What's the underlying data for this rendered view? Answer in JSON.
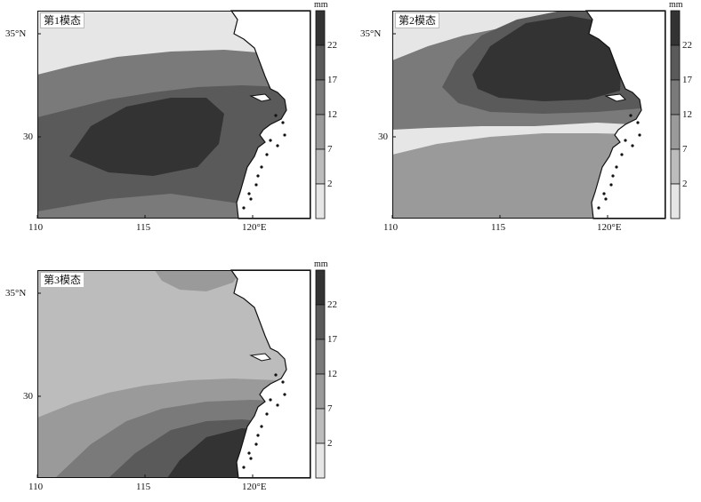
{
  "panels": [
    {
      "id": "p1",
      "title": "第1模态",
      "levels": [
        0,
        3,
        4,
        5
      ]
    },
    {
      "id": "p2",
      "title": "第2模态",
      "levels": [
        0,
        1,
        2,
        3,
        4,
        5
      ]
    },
    {
      "id": "p3",
      "title": "第3模态",
      "levels": [
        1,
        2,
        3,
        4,
        5
      ]
    }
  ],
  "axes": {
    "x_ticks": [
      "110",
      "115",
      "120°E"
    ],
    "y_ticks": [
      "35°N",
      "30"
    ]
  },
  "colorbar": {
    "unit": "mm",
    "labels": [
      "22",
      "17",
      "12",
      "7",
      "2"
    ],
    "colors": [
      "#333333",
      "#5a5a5a",
      "#7a7a7a",
      "#9a9a9a",
      "#bcbcbc",
      "#e6e6e6"
    ]
  },
  "colors": {
    "land": "#ffffff",
    "coast": "#111111",
    "frame": "#111111"
  }
}
